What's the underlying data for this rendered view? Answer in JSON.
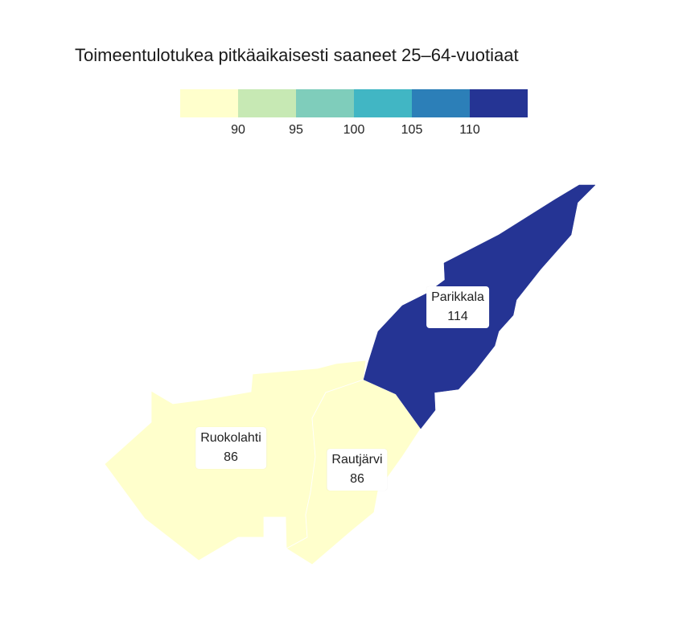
{
  "title": "Toimeentulotukea pitkäaikaisesti saaneet 25–64-vuotiaat",
  "legend": {
    "colors": [
      "#ffffcc",
      "#c7e9b4",
      "#7fcdbb",
      "#41b6c4",
      "#2c7fb8",
      "#253494"
    ],
    "ticks": [
      "90",
      "95",
      "100",
      "105",
      "110"
    ]
  },
  "regions": [
    {
      "id": "ruokolahti",
      "name": "Ruokolahti",
      "value": "86",
      "color": "#ffffcc"
    },
    {
      "id": "rautjarvi",
      "name": "Rautjärvi",
      "value": "86",
      "color": "#ffffcc"
    },
    {
      "id": "parikkala",
      "name": "Parikkala",
      "value": "114",
      "color": "#253494"
    }
  ]
}
